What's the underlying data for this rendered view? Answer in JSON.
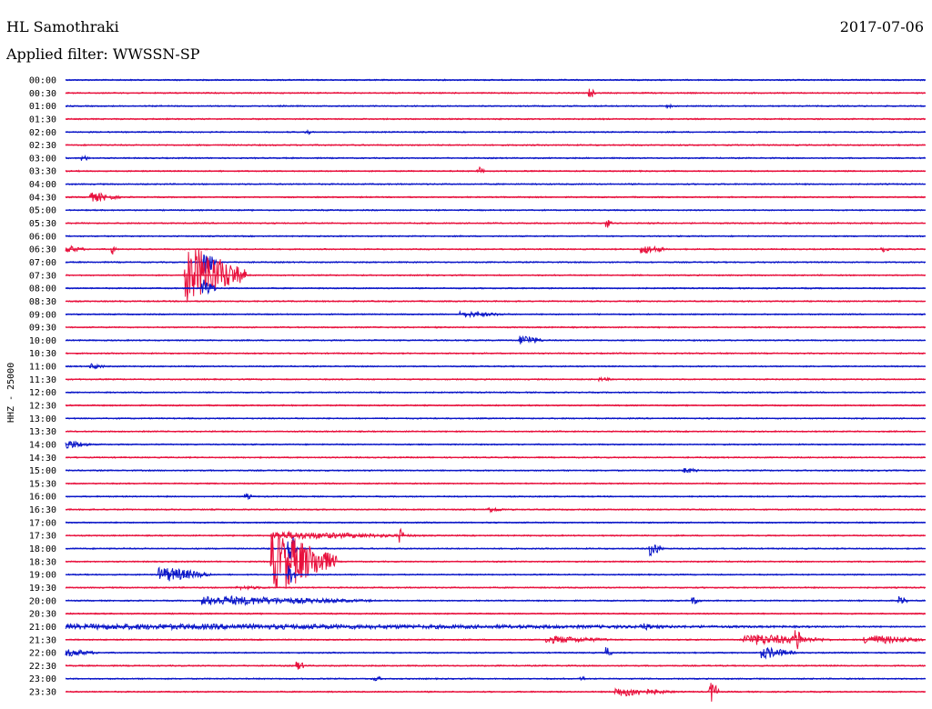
{
  "header": {
    "station": "HL Samothraki",
    "filter": "Applied filter: WWSSN-SP",
    "date": "2017-07-06"
  },
  "chart_data": {
    "type": "helicorder",
    "channel_label": "HHZ - 25000",
    "colors": [
      "#0a16c8",
      "#e8103c"
    ],
    "rows": [
      "00:00",
      "00:30",
      "01:00",
      "01:30",
      "02:00",
      "02:30",
      "03:00",
      "03:30",
      "04:00",
      "04:30",
      "05:00",
      "05:30",
      "06:00",
      "06:30",
      "07:00",
      "07:30",
      "08:00",
      "08:30",
      "09:00",
      "09:30",
      "10:00",
      "10:30",
      "11:00",
      "11:30",
      "12:00",
      "12:30",
      "13:00",
      "13:30",
      "14:00",
      "14:30",
      "15:00",
      "15:30",
      "16:00",
      "16:30",
      "17:00",
      "17:30",
      "18:00",
      "18:30",
      "19:00",
      "19:30",
      "20:00",
      "20:30",
      "21:00",
      "21:30",
      "22:00",
      "22:30",
      "23:00",
      "23:30"
    ],
    "events": [
      {
        "row": 1,
        "t": 0.61,
        "amp": 6,
        "dur": 0.006
      },
      {
        "row": 2,
        "t": 0.7,
        "amp": 2,
        "dur": 0.01
      },
      {
        "row": 4,
        "t": 0.28,
        "amp": 3,
        "dur": 0.008
      },
      {
        "row": 6,
        "t": 0.02,
        "amp": 3,
        "dur": 0.01
      },
      {
        "row": 7,
        "t": 0.48,
        "amp": 5,
        "dur": 0.008
      },
      {
        "row": 9,
        "t": 0.03,
        "amp": 5,
        "dur": 0.035
      },
      {
        "row": 11,
        "t": 0.63,
        "amp": 5,
        "dur": 0.006
      },
      {
        "row": 13,
        "t": 0.0,
        "amp": 4,
        "dur": 0.025
      },
      {
        "row": 13,
        "t": 0.055,
        "amp": 6,
        "dur": 0.004
      },
      {
        "row": 13,
        "t": 0.67,
        "amp": 5,
        "dur": 0.03
      },
      {
        "row": 13,
        "t": 0.95,
        "amp": 4,
        "dur": 0.008
      },
      {
        "row": 14,
        "t": 0.16,
        "amp": 16,
        "dur": 0.015
      },
      {
        "row": 15,
        "t": 0.14,
        "amp": 30,
        "dur": 0.07
      },
      {
        "row": 16,
        "t": 0.16,
        "amp": 10,
        "dur": 0.015
      },
      {
        "row": 18,
        "t": 0.46,
        "amp": 3,
        "dur": 0.06
      },
      {
        "row": 20,
        "t": 0.53,
        "amp": 6,
        "dur": 0.025
      },
      {
        "row": 22,
        "t": 0.03,
        "amp": 3,
        "dur": 0.02
      },
      {
        "row": 23,
        "t": 0.62,
        "amp": 2,
        "dur": 0.025
      },
      {
        "row": 28,
        "t": 0.0,
        "amp": 5,
        "dur": 0.03
      },
      {
        "row": 30,
        "t": 0.72,
        "amp": 3,
        "dur": 0.02
      },
      {
        "row": 32,
        "t": 0.21,
        "amp": 3,
        "dur": 0.01
      },
      {
        "row": 33,
        "t": 0.49,
        "amp": 3,
        "dur": 0.025
      },
      {
        "row": 35,
        "t": 0.24,
        "amp": 4,
        "dur": 0.18
      },
      {
        "row": 35,
        "t": 0.39,
        "amp": 8,
        "dur": 0.004
      },
      {
        "row": 36,
        "t": 0.26,
        "amp": 18,
        "dur": 0.01
      },
      {
        "row": 36,
        "t": 0.68,
        "amp": 8,
        "dur": 0.015
      },
      {
        "row": 37,
        "t": 0.24,
        "amp": 32,
        "dur": 0.075
      },
      {
        "row": 38,
        "t": 0.11,
        "amp": 8,
        "dur": 0.06
      },
      {
        "row": 38,
        "t": 0.26,
        "amp": 10,
        "dur": 0.01
      },
      {
        "row": 39,
        "t": 0.2,
        "amp": 2,
        "dur": 0.05
      },
      {
        "row": 40,
        "t": 0.16,
        "amp": 5,
        "dur": 0.2
      },
      {
        "row": 40,
        "t": 0.73,
        "amp": 4,
        "dur": 0.01
      },
      {
        "row": 40,
        "t": 0.97,
        "amp": 5,
        "dur": 0.01
      },
      {
        "row": 42,
        "t": 0.0,
        "amp": 3,
        "dur": 1.0
      },
      {
        "row": 42,
        "t": 0.67,
        "amp": 4,
        "dur": 0.02
      },
      {
        "row": 43,
        "t": 0.56,
        "amp": 4,
        "dur": 0.08
      },
      {
        "row": 43,
        "t": 0.79,
        "amp": 6,
        "dur": 0.1
      },
      {
        "row": 43,
        "t": 0.85,
        "amp": 14,
        "dur": 0.008
      },
      {
        "row": 43,
        "t": 0.93,
        "amp": 5,
        "dur": 0.07
      },
      {
        "row": 44,
        "t": 0.0,
        "amp": 4,
        "dur": 0.04
      },
      {
        "row": 44,
        "t": 0.63,
        "amp": 6,
        "dur": 0.006
      },
      {
        "row": 44,
        "t": 0.81,
        "amp": 6,
        "dur": 0.04
      },
      {
        "row": 45,
        "t": 0.27,
        "amp": 5,
        "dur": 0.01
      },
      {
        "row": 46,
        "t": 0.36,
        "amp": 3,
        "dur": 0.01
      },
      {
        "row": 46,
        "t": 0.6,
        "amp": 3,
        "dur": 0.006
      },
      {
        "row": 47,
        "t": 0.64,
        "amp": 5,
        "dur": 0.07
      },
      {
        "row": 47,
        "t": 0.75,
        "amp": 12,
        "dur": 0.01
      }
    ]
  }
}
